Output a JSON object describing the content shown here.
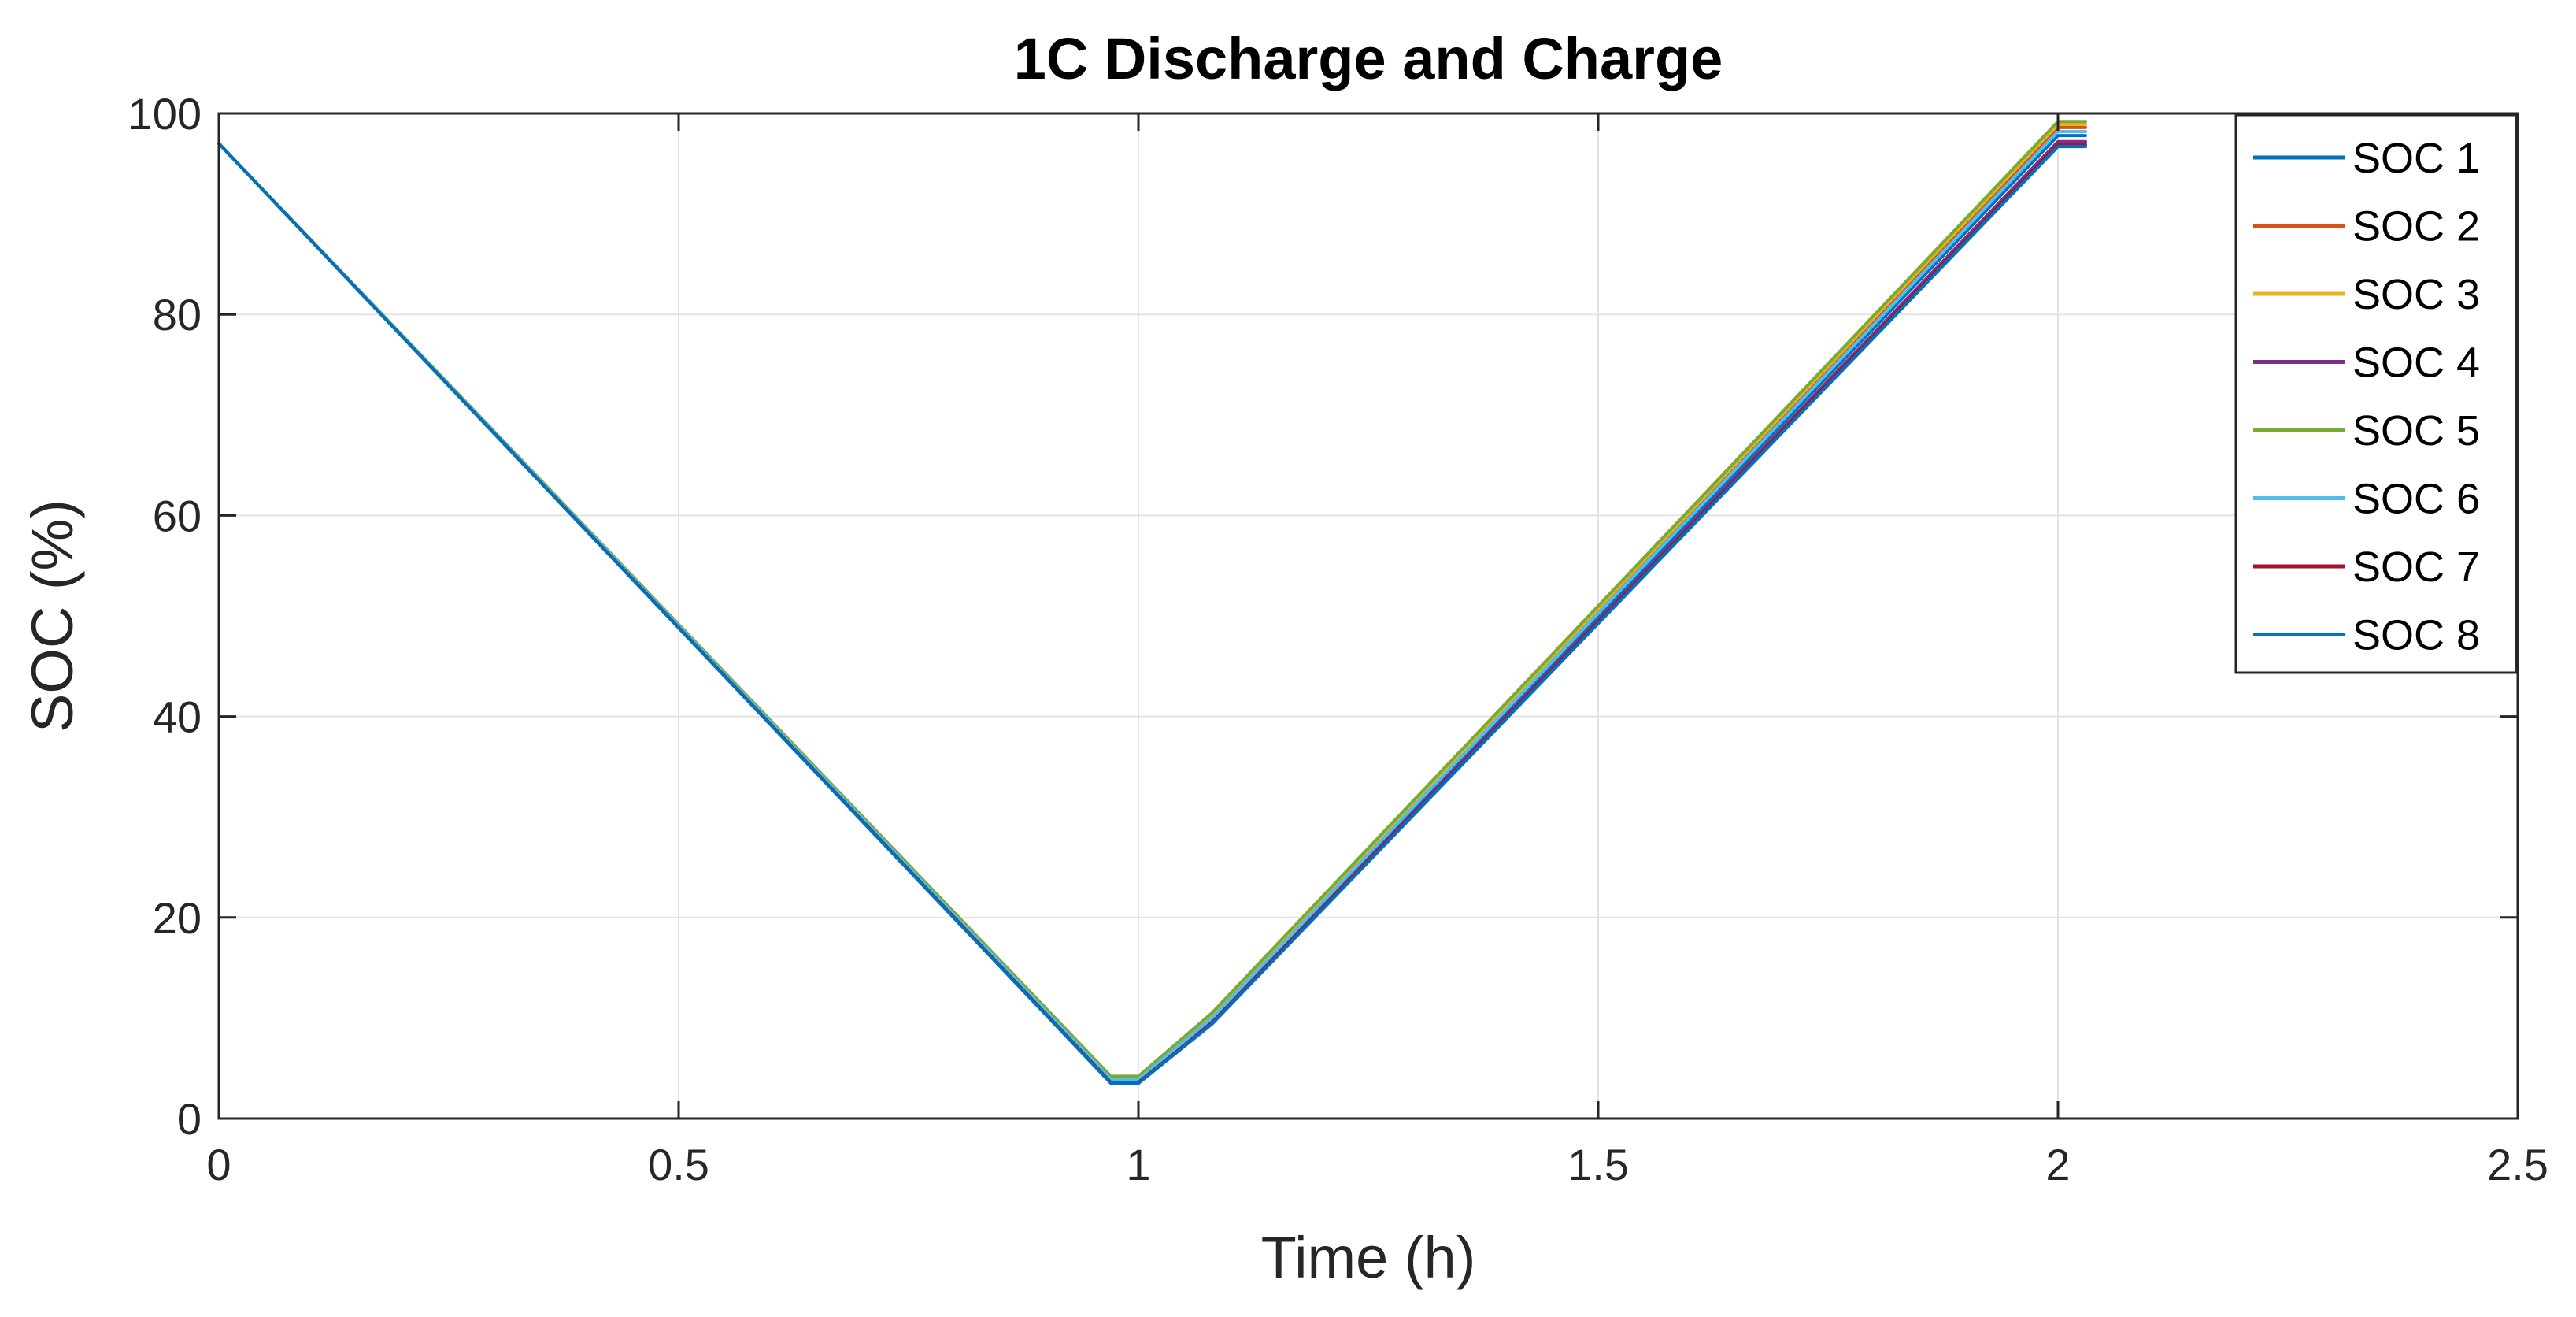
{
  "chart_data": {
    "type": "line",
    "title": "1C Discharge and Charge",
    "xlabel": "Time (h)",
    "ylabel": "SOC (%)",
    "xlim": [
      0,
      2.5
    ],
    "ylim": [
      0,
      100
    ],
    "xticks": [
      0,
      0.5,
      1,
      1.5,
      2,
      2.5
    ],
    "xtick_labels": [
      "0",
      "0.5",
      "1",
      "1.5",
      "2",
      "2.5"
    ],
    "yticks": [
      0,
      20,
      40,
      60,
      80,
      100
    ],
    "ytick_labels": [
      "0",
      "20",
      "40",
      "60",
      "80",
      "100"
    ],
    "grid": true,
    "legend_position": "top-right",
    "series": [
      {
        "name": "SOC 1",
        "color": "#0072BD",
        "x": [
          0,
          0.97,
          1.0,
          1.08,
          2.0,
          2.03
        ],
        "y": [
          97,
          3.8,
          3.8,
          9.8,
          97.8,
          97.8
        ]
      },
      {
        "name": "SOC 2",
        "color": "#D95319",
        "x": [
          0,
          0.97,
          1.0,
          1.08,
          2.0,
          2.03
        ],
        "y": [
          97,
          4.0,
          4.0,
          10.2,
          98.6,
          98.6
        ]
      },
      {
        "name": "SOC 3",
        "color": "#EDB120",
        "x": [
          0,
          0.97,
          1.0,
          1.08,
          2.0,
          2.03
        ],
        "y": [
          97,
          4.1,
          4.1,
          10.3,
          98.9,
          98.9
        ]
      },
      {
        "name": "SOC 4",
        "color": "#7E2F8E",
        "x": [
          0,
          0.97,
          1.0,
          1.08,
          2.0,
          2.03
        ],
        "y": [
          97,
          3.7,
          3.7,
          9.6,
          97.2,
          97.2
        ]
      },
      {
        "name": "SOC 5",
        "color": "#77AC30",
        "x": [
          0,
          0.97,
          1.0,
          1.08,
          2.0,
          2.03
        ],
        "y": [
          97,
          4.2,
          4.2,
          10.5,
          99.2,
          99.2
        ]
      },
      {
        "name": "SOC 6",
        "color": "#4DBEEE",
        "x": [
          0,
          0.97,
          1.0,
          1.08,
          2.0,
          2.03
        ],
        "y": [
          97,
          3.9,
          3.9,
          10.0,
          98.2,
          98.2
        ]
      },
      {
        "name": "SOC 7",
        "color": "#A2142F",
        "x": [
          0,
          0.97,
          1.0,
          1.08,
          2.0,
          2.03
        ],
        "y": [
          97,
          3.6,
          3.6,
          9.5,
          96.9,
          96.9
        ]
      },
      {
        "name": "SOC 8",
        "color": "#0072BD",
        "x": [
          0,
          0.97,
          1.0,
          1.08,
          2.0,
          2.03
        ],
        "y": [
          97,
          3.5,
          3.5,
          9.4,
          96.7,
          96.7
        ]
      }
    ]
  }
}
